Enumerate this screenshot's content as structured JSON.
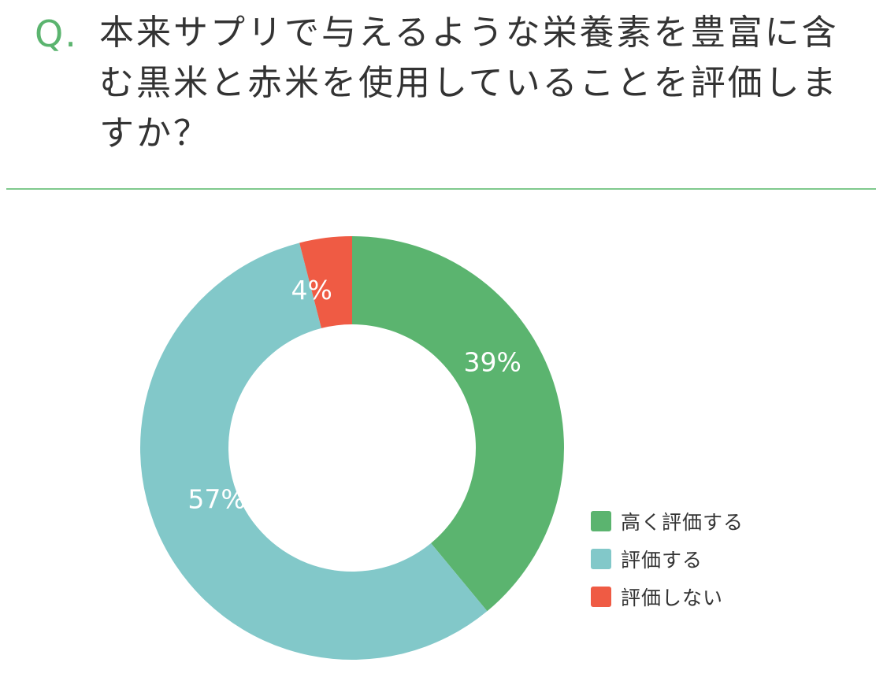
{
  "question": {
    "prefix": "Q.",
    "text": "本来サプリで与えるような栄養素を豊富に含む黒米と赤米を使用していることを評価しますか？"
  },
  "colors": {
    "accent": "#5bb46f",
    "slice_high": "#5bb46f",
    "slice_mid": "#82c8c9",
    "slice_low": "#ef5b44",
    "divider": "#7fc98d"
  },
  "chart_data": {
    "type": "pie",
    "donut": true,
    "categories": [
      "高く評価する",
      "評価する",
      "評価しない"
    ],
    "values": [
      39,
      57,
      4
    ],
    "value_labels": [
      "39%",
      "57%",
      "4%"
    ],
    "legend_position": "bottom-right"
  }
}
